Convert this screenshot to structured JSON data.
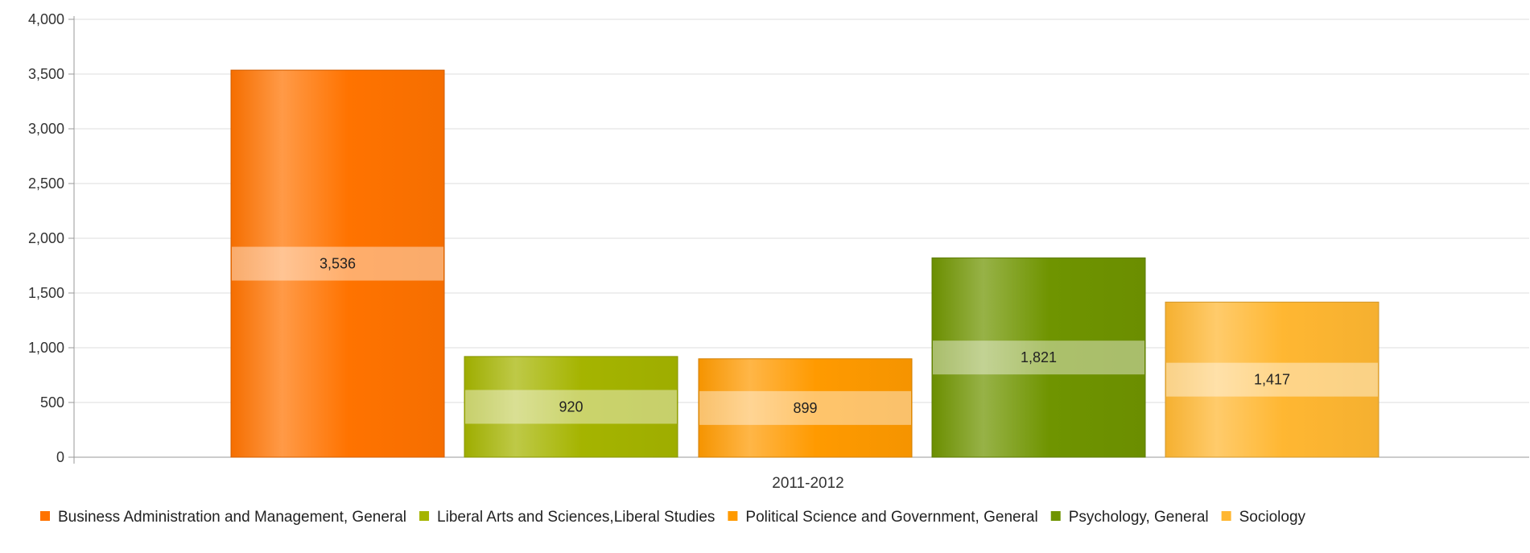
{
  "chart_data": {
    "type": "bar",
    "categories": [
      "2011-2012"
    ],
    "series": [
      {
        "name": "Business Administration and Management, General",
        "values": [
          3536
        ],
        "value_label": "3,536",
        "color": "#ff7300"
      },
      {
        "name": "Liberal Arts and Sciences,Liberal Studies",
        "values": [
          920
        ],
        "value_label": "920",
        "color": "#a5b400"
      },
      {
        "name": "Political Science and Government, General",
        "values": [
          899
        ],
        "value_label": "899",
        "color": "#ff9a00"
      },
      {
        "name": "Psychology, General",
        "values": [
          1821
        ],
        "value_label": "1,821",
        "color": "#6f9400"
      },
      {
        "name": "Sociology",
        "values": [
          1417
        ],
        "value_label": "1,417",
        "color": "#ffb732"
      }
    ],
    "ylim": [
      0,
      4000
    ],
    "yticks": [
      {
        "value": 0,
        "label": "0"
      },
      {
        "value": 500,
        "label": "500"
      },
      {
        "value": 1000,
        "label": "1,000"
      },
      {
        "value": 1500,
        "label": "1,500"
      },
      {
        "value": 2000,
        "label": "2,000"
      },
      {
        "value": 2500,
        "label": "2,500"
      },
      {
        "value": 3000,
        "label": "3,000"
      },
      {
        "value": 3500,
        "label": "3,500"
      },
      {
        "value": 4000,
        "label": "4,000"
      }
    ],
    "grid": true,
    "legend": "bottom-left"
  }
}
